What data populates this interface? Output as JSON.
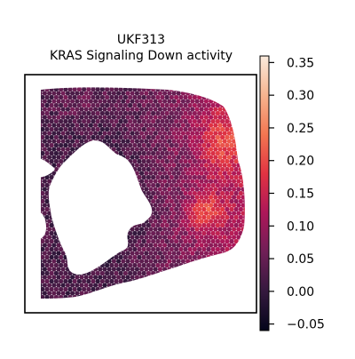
{
  "chart_data": {
    "type": "heatmap",
    "title_line1": "UKF313",
    "title_line2": "KRAS Signaling Down activity",
    "xlabel": "",
    "ylabel": "",
    "colorbar": {
      "range": [
        -0.06,
        0.36
      ],
      "ticks": [
        -0.05,
        0.0,
        0.05,
        0.1,
        0.15,
        0.2,
        0.25,
        0.3,
        0.35
      ],
      "tick_labels": [
        "−0.05",
        "0.00",
        "0.05",
        "0.10",
        "0.15",
        "0.20",
        "0.25",
        "0.30",
        "0.35"
      ],
      "colormap": "rocket",
      "colormap_stops": [
        "#03051a",
        "#35193e",
        "#701f57",
        "#ad1759",
        "#e13342",
        "#f37651",
        "#f6b48f",
        "#faebdd"
      ]
    },
    "spatial_spots": {
      "description_values": "Hexagonal spatial transcriptomics spots colored by KRAS Signaling Down activity; highest activity (~0.30–0.35) along the right edge, lowest (~−0.05) around the central tissue gap."
    }
  }
}
